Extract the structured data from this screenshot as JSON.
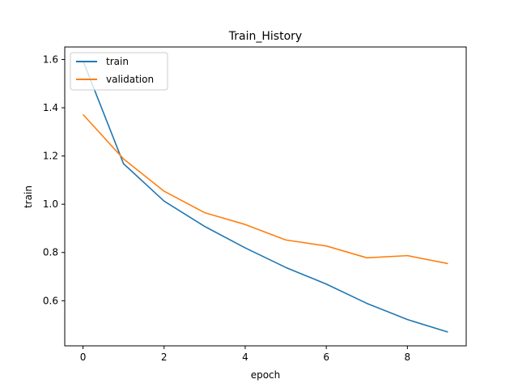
{
  "chart_data": {
    "type": "line",
    "title": "Train_History",
    "xlabel": "epoch",
    "ylabel": "train",
    "x": [
      0,
      1,
      2,
      3,
      4,
      5,
      6,
      7,
      8,
      9
    ],
    "series": [
      {
        "name": "train",
        "color": "#1f77b4",
        "values": [
          1.595,
          1.168,
          1.013,
          0.908,
          0.819,
          0.738,
          0.669,
          0.589,
          0.522,
          0.47
        ]
      },
      {
        "name": "validation",
        "color": "#ff7f0e",
        "values": [
          1.372,
          1.188,
          1.054,
          0.965,
          0.916,
          0.852,
          0.827,
          0.778,
          0.787,
          0.754
        ]
      }
    ],
    "xlim": [
      -0.45,
      9.45
    ],
    "ylim": [
      0.413,
      1.652
    ],
    "xticks": [
      0,
      2,
      4,
      6,
      8
    ],
    "yticks": [
      0.6,
      0.8,
      1.0,
      1.2,
      1.4,
      1.6
    ],
    "xtick_labels": [
      "0",
      "2",
      "4",
      "6",
      "8"
    ],
    "ytick_labels": [
      "0.6",
      "0.8",
      "1.0",
      "1.2",
      "1.4",
      "1.6"
    ],
    "grid": false,
    "legend_position": "upper-left"
  }
}
